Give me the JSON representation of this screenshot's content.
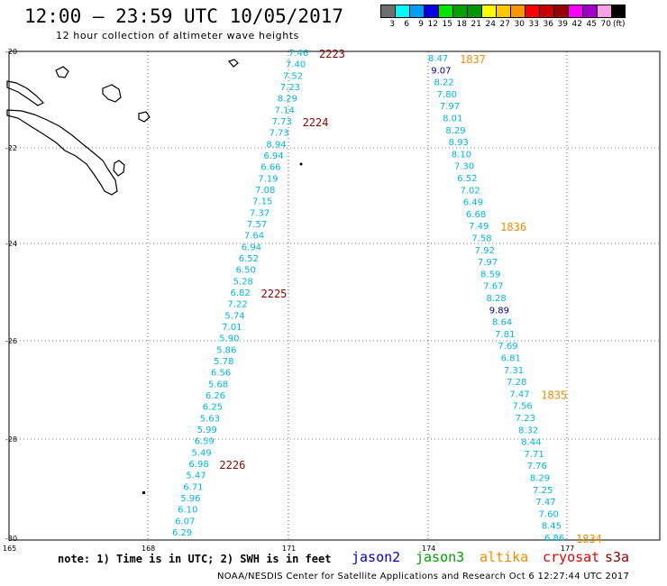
{
  "header": {
    "title": "12:00 – 23:59 UTC 10/05/2017",
    "subtitle": "12 hour collection of altimeter wave heights"
  },
  "colorbar": {
    "colors": [
      "#6e6e6e",
      "#00fafa",
      "#00a0fa",
      "#0000e6",
      "#00e600",
      "#00a000",
      "#009600",
      "#fafa00",
      "#fac800",
      "#fa9600",
      "#fa0000",
      "#c80000",
      "#960000",
      "#fa00fa",
      "#a000c8",
      "#ffa0e6",
      "#000000"
    ],
    "labels": [
      "3",
      "6",
      "9",
      "12",
      "15",
      "18",
      "21",
      "24",
      "27",
      "30",
      "33",
      "36",
      "39",
      "42",
      "45",
      "70"
    ],
    "unit": "(ft)"
  },
  "axes": {
    "lat_labels": [
      "-20",
      "-22",
      "-24",
      "-26",
      "-28",
      "-30"
    ],
    "lon_labels": [
      "165",
      "168",
      "171",
      "174",
      "177"
    ]
  },
  "tracks": {
    "west": {
      "color": "#00b4e6",
      "values": [
        "7.46",
        "7.40",
        "7.52",
        "7.23",
        "8.29",
        "7.14",
        "7.73",
        "7.73",
        "8.94",
        "6.94",
        "6.66",
        "7.19",
        "7.08",
        "7.15",
        "7.37",
        "7.57",
        "7.64",
        "6.94",
        "6.52",
        "6.50",
        "5.28",
        "6.82",
        "7.22",
        "5.74",
        "7.01",
        "5.90",
        "5.86",
        "5.78",
        "6.56",
        "5.68",
        "6.26",
        "6.25",
        "5.63",
        "5.99",
        "6.59",
        "5.49",
        "6.98",
        "5.47",
        "6.71",
        "5.96",
        "6.10",
        "6.07",
        "6.29"
      ],
      "times": [
        {
          "label": "2223",
          "color": "#8b0000"
        },
        {
          "label": "2224",
          "color": "#8b0000"
        },
        {
          "label": "2225",
          "color": "#8b0000"
        },
        {
          "label": "2226",
          "color": "#8b0000"
        }
      ]
    },
    "east": {
      "color": "#00b4e6",
      "values": [
        "8.47",
        "9.07",
        "8.22",
        "7.80",
        "7.97",
        "8.01",
        "8.29",
        "8.93",
        "8.10",
        "7.30",
        "6.52",
        "7.02",
        "6.49",
        "6.68",
        "7.49",
        "7.58",
        "7.92",
        "7.97",
        "8.59",
        "7.67",
        "8.28",
        "9.89",
        "8.64",
        "7.81",
        "7.69",
        "6.81",
        "7.31",
        "7.28",
        "7.47",
        "7.56",
        "7.23",
        "8.32",
        "8.44",
        "7.71",
        "7.76",
        "8.29",
        "7.25",
        "7.47",
        "7.60",
        "8.45",
        "6.86"
      ],
      "value_colors": {
        "1": "#0000a0",
        "21": "#0000a0"
      },
      "times": [
        {
          "label": "1837",
          "color": "#f08c00"
        },
        {
          "label": "1836",
          "color": "#f08c00"
        },
        {
          "label": "1835",
          "color": "#f08c00"
        },
        {
          "label": "1834",
          "color": "#f08c00"
        }
      ]
    }
  },
  "footer": {
    "note": "note: 1) Time is in UTC; 2) SWH is in feet",
    "satellites": [
      {
        "name": "jason2",
        "color": "#0000c8"
      },
      {
        "name": "jason3",
        "color": "#00a000"
      },
      {
        "name": "altika",
        "color": "#f08c00"
      },
      {
        "name": "cryosat",
        "color": "#e60000"
      },
      {
        "name": "s3a",
        "color": "#8b0000"
      }
    ],
    "credit": "NOAA/NESDIS Center for Satellite Applications and Research   Oct  6 12:27:44 UTC 2017"
  }
}
